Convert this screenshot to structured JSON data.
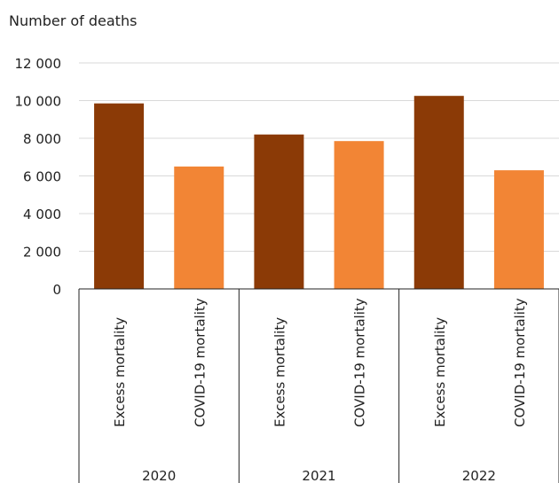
{
  "chart_data": {
    "type": "bar",
    "ylabel": "Number of deaths",
    "ylim": [
      0,
      12000
    ],
    "yticks": [
      0,
      2000,
      4000,
      6000,
      8000,
      10000,
      12000
    ],
    "ytick_labels": [
      "0",
      "2 000",
      "4 000",
      "6 000",
      "8 000",
      "10 000",
      "12 000"
    ],
    "grid": true,
    "groups": [
      "2020",
      "2021",
      "2022"
    ],
    "categories": [
      "Excess mortality",
      "COVID-19 mortality"
    ],
    "bars": [
      {
        "group": "2020",
        "category": "Excess mortality",
        "value": 9850,
        "color": "#8B3A06"
      },
      {
        "group": "2020",
        "category": "COVID-19 mortality",
        "value": 6500,
        "color": "#F28535"
      },
      {
        "group": "2021",
        "category": "Excess mortality",
        "value": 8200,
        "color": "#8B3A06"
      },
      {
        "group": "2021",
        "category": "COVID-19 mortality",
        "value": 7850,
        "color": "#F28535"
      },
      {
        "group": "2022",
        "category": "Excess mortality",
        "value": 10250,
        "color": "#8B3A06"
      },
      {
        "group": "2022",
        "category": "COVID-19 mortality",
        "value": 6300,
        "color": "#F28535"
      }
    ]
  }
}
